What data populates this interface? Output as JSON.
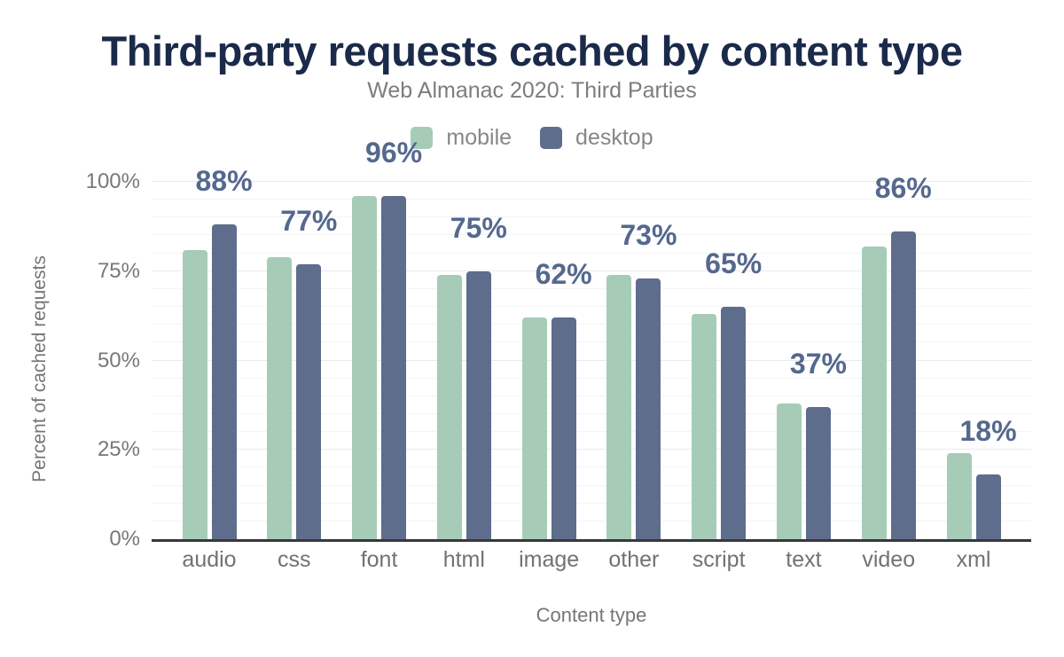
{
  "title": "Third-party requests cached by content type",
  "subtitle": "Web Almanac 2020: Third Parties",
  "legend": [
    {
      "label": "mobile",
      "color": "#a6ccb8"
    },
    {
      "label": "desktop",
      "color": "#5e6d8c"
    }
  ],
  "y_axis": {
    "title": "Percent of cached requests",
    "ticks": [
      "100%",
      "75%",
      "50%",
      "25%",
      "0%"
    ]
  },
  "x_axis": {
    "title": "Content type"
  },
  "chart_data": {
    "type": "bar",
    "categories": [
      "audio",
      "css",
      "font",
      "html",
      "image",
      "other",
      "script",
      "text",
      "video",
      "xml"
    ],
    "series": [
      {
        "name": "mobile",
        "color": "#a6ccb8",
        "values": [
          81,
          79,
          96,
          74,
          62,
          74,
          63,
          38,
          82,
          24
        ]
      },
      {
        "name": "desktop",
        "color": "#5e6d8c",
        "values": [
          88,
          77,
          96,
          75,
          62,
          73,
          65,
          37,
          86,
          18
        ]
      }
    ],
    "bar_labels": [
      "88%",
      "77%",
      "96%",
      "75%",
      "62%",
      "73%",
      "65%",
      "37%",
      "86%",
      "18%"
    ],
    "title": "Third-party requests cached by content type",
    "subtitle": "Web Almanac 2020: Third Parties",
    "xlabel": "Content type",
    "ylabel": "Percent of cached requests",
    "ylim": [
      0,
      100
    ],
    "ytick_interval": 25,
    "minor_grid_interval": 5,
    "grid": true,
    "legend_position": "top"
  }
}
